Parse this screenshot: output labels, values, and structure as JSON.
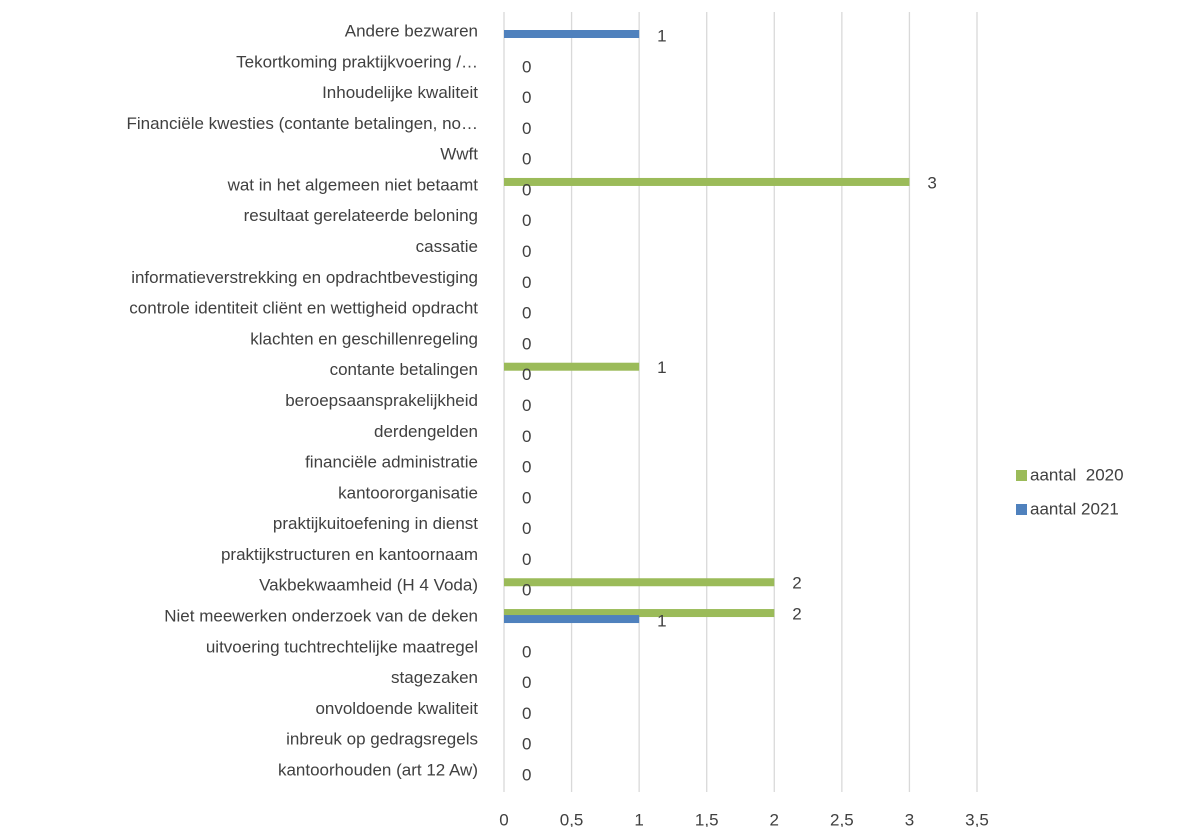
{
  "chart_data": {
    "type": "bar",
    "orientation": "horizontal",
    "categories": [
      "Andere bezwaren",
      "Tekortkoming praktijkvoering /…",
      "Inhoudelijke kwaliteit",
      "Financiële kwesties (contante betalingen, no…",
      "Wwft",
      "wat in het algemeen niet betaamt",
      "resultaat gerelateerde beloning",
      "cassatie",
      "informatieverstrekking en opdrachtbevestiging",
      "controle identiteit cliënt en wettigheid opdracht",
      "klachten en geschillenregeling",
      "contante betalingen",
      "beroepsaansprakelijkheid",
      "derdengelden",
      "financiële administratie",
      "kantoororganisatie",
      "praktijkuitoefening in dienst",
      "praktijkstructuren en kantoornaam",
      "Vakbekwaamheid (H 4 Voda)",
      "Niet meewerken onderzoek van de deken",
      "uitvoering tuchtrechtelijke maatregel",
      "stagezaken",
      "onvoldoende kwaliteit",
      "inbreuk op gedragsregels",
      "kantoorhouden (art 12 Aw)"
    ],
    "series": [
      {
        "name": "aantal  2020",
        "color": "#9bbb59",
        "values": [
          null,
          null,
          null,
          null,
          null,
          3,
          null,
          null,
          null,
          null,
          null,
          1,
          null,
          null,
          null,
          null,
          null,
          null,
          2,
          2,
          null,
          null,
          null,
          null,
          null
        ]
      },
      {
        "name": "aantal 2021",
        "color": "#4f81bd",
        "values": [
          1,
          0,
          0,
          0,
          0,
          0,
          0,
          0,
          0,
          0,
          0,
          0,
          0,
          0,
          0,
          0,
          0,
          0,
          0,
          1,
          0,
          0,
          0,
          0,
          0
        ]
      }
    ],
    "xlim": [
      0,
      3.5
    ],
    "xticks": [
      0,
      {
        "value": 0.5,
        "label": "0,5"
      },
      1,
      {
        "value": 1.5,
        "label": "1,5"
      },
      2,
      {
        "value": 2.5,
        "label": "2,5"
      },
      3,
      {
        "value": 3.5,
        "label": "3,5"
      }
    ],
    "grid": true,
    "legend": "right"
  }
}
